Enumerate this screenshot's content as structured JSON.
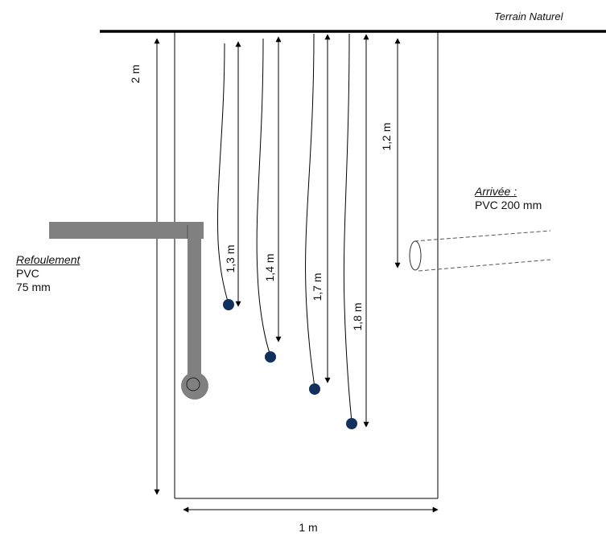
{
  "ground": {
    "label": "Terrain Naturel"
  },
  "dimensions": {
    "depth": "2 m",
    "width": "1 m",
    "inlet_depth": "1,2 m"
  },
  "floats": [
    {
      "label": "1,3 m"
    },
    {
      "label": "1,4 m"
    },
    {
      "label": "1,7 m"
    },
    {
      "label": "1,8 m"
    }
  ],
  "outlet": {
    "title": "Refoulement",
    "line1": "PVC",
    "line2": "75 mm"
  },
  "inlet": {
    "title": "Arrivée :",
    "line1": "PVC 200 mm"
  },
  "colors": {
    "float": "#12305e",
    "pipe": "#808080",
    "line": "#000000"
  }
}
